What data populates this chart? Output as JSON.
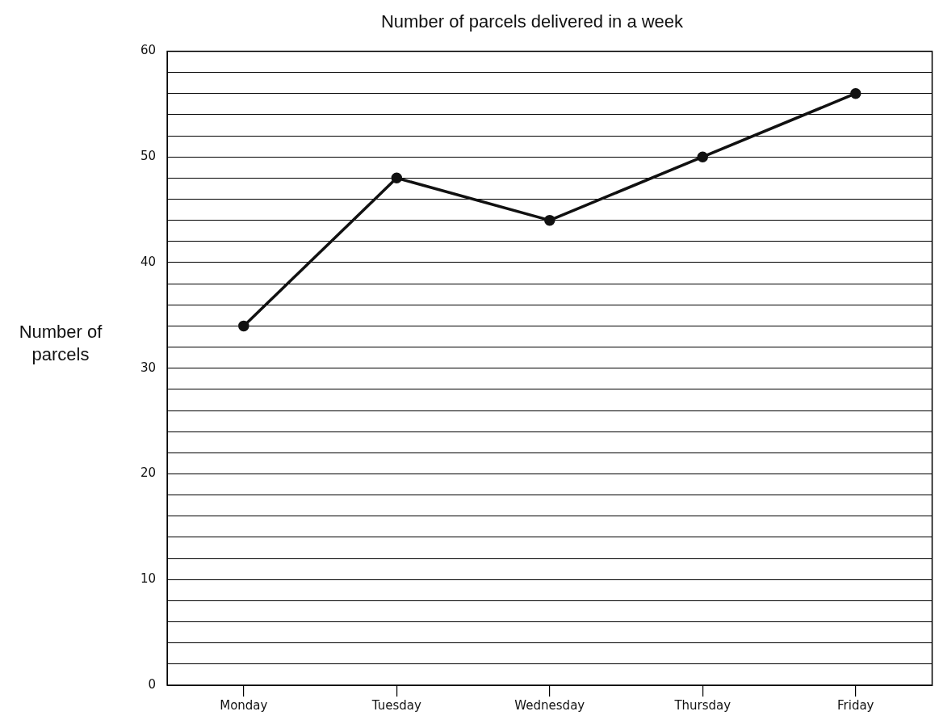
{
  "chart_data": {
    "type": "line",
    "title": "Number of parcels delivered in a week",
    "ylabel": "Number of parcels",
    "categories": [
      "Monday",
      "Tuesday",
      "Wednesday",
      "Thursday",
      "Friday"
    ],
    "series": [
      {
        "color": "#111111",
        "values": [
          34,
          48,
          44,
          50,
          56
        ]
      }
    ],
    "ylim": [
      0,
      60
    ],
    "yticks": [
      0,
      {
        "value": 2,
        "label": null
      },
      {
        "value": 4,
        "label": null
      },
      {
        "value": 6,
        "label": null
      },
      {
        "value": 8,
        "label": null
      },
      10,
      {
        "value": 12,
        "label": null
      },
      {
        "value": 14,
        "label": null
      },
      {
        "value": 16,
        "label": null
      },
      {
        "value": 18,
        "label": null
      },
      20,
      {
        "value": 22,
        "label": null
      },
      {
        "value": 24,
        "label": null
      },
      {
        "value": 26,
        "label": null
      },
      {
        "value": 28,
        "label": null
      },
      30,
      {
        "value": 32,
        "label": null
      },
      {
        "value": 34,
        "label": null
      },
      {
        "value": 36,
        "label": null
      },
      {
        "value": 38,
        "label": null
      },
      40,
      {
        "value": 42,
        "label": null
      },
      {
        "value": 44,
        "label": null
      },
      {
        "value": 46,
        "label": null
      },
      {
        "value": 48,
        "label": null
      },
      50,
      {
        "value": 52,
        "label": null
      },
      {
        "value": 54,
        "label": null
      },
      {
        "value": 56,
        "label": null
      },
      {
        "value": 58,
        "label": null
      },
      60
    ],
    "grid": "y",
    "legend": false,
    "marker": "circle",
    "line_style": "solid"
  }
}
